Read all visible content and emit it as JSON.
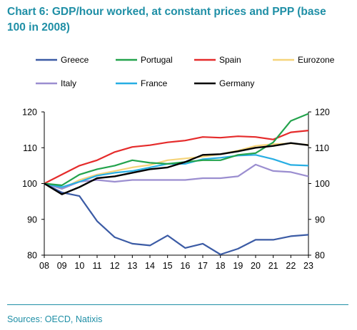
{
  "title_lines": [
    "Chart 6: GDP/hour worked, at constant prices and PPP (base",
    "100 in 2008)"
  ],
  "source": "Sources: OECD, Natixis",
  "chart_data": {
    "type": "line",
    "title": "Chart 6: GDP/hour worked, at constant prices and PPP (base 100 in 2008)",
    "xlabel": "",
    "ylabel": "",
    "x": [
      "08",
      "09",
      "10",
      "11",
      "12",
      "13",
      "14",
      "15",
      "16",
      "17",
      "18",
      "19",
      "20",
      "21",
      "22",
      "23"
    ],
    "ylim": [
      80,
      120
    ],
    "yticks": [
      80,
      90,
      100,
      110,
      120
    ],
    "right_axis": true,
    "grid": false,
    "legend": "top",
    "series": [
      {
        "name": "Greece",
        "color": "#3b5ba5",
        "values": [
          100,
          97.5,
          96.5,
          89.5,
          85.0,
          83.2,
          82.7,
          85.5,
          82.0,
          83.2,
          80.2,
          81.8,
          84.3,
          84.3,
          85.3,
          85.7
        ]
      },
      {
        "name": "Portugal",
        "color": "#23a34c",
        "values": [
          100,
          99.5,
          102.5,
          104.0,
          105.0,
          106.5,
          105.8,
          105.5,
          106.0,
          106.5,
          106.5,
          108.0,
          108.5,
          111.5,
          117.5,
          119.5
        ]
      },
      {
        "name": "Spain",
        "color": "#e52b2b",
        "values": [
          100,
          102.5,
          105.0,
          106.5,
          108.8,
          110.2,
          110.7,
          111.5,
          112.0,
          113.0,
          112.8,
          113.2,
          113.0,
          112.3,
          114.3,
          114.8
        ]
      },
      {
        "name": "Eurozone",
        "color": "#f5d47a",
        "values": [
          100,
          98.5,
          101.0,
          102.5,
          103.5,
          104.5,
          105.2,
          106.5,
          107.0,
          107.5,
          108.2,
          109.2,
          110.5,
          111.0,
          111.2,
          110.8
        ]
      },
      {
        "name": "Italy",
        "color": "#9b8ed0",
        "values": [
          100,
          98.5,
          100.5,
          101.0,
          100.5,
          101.0,
          101.0,
          101.0,
          101.0,
          101.5,
          101.5,
          102.0,
          105.3,
          103.5,
          103.2,
          102.0
        ]
      },
      {
        "name": "France",
        "color": "#27aee3",
        "values": [
          100,
          99.0,
          100.5,
          102.2,
          103.0,
          103.5,
          104.5,
          105.5,
          105.5,
          106.8,
          107.2,
          107.8,
          108.0,
          106.8,
          105.2,
          105.0
        ]
      },
      {
        "name": "Germany",
        "color": "#000000",
        "values": [
          100,
          97.0,
          99.0,
          101.5,
          102.0,
          103.0,
          104.0,
          104.5,
          106.0,
          108.0,
          108.2,
          109.0,
          110.0,
          110.5,
          111.3,
          110.7
        ]
      }
    ]
  }
}
